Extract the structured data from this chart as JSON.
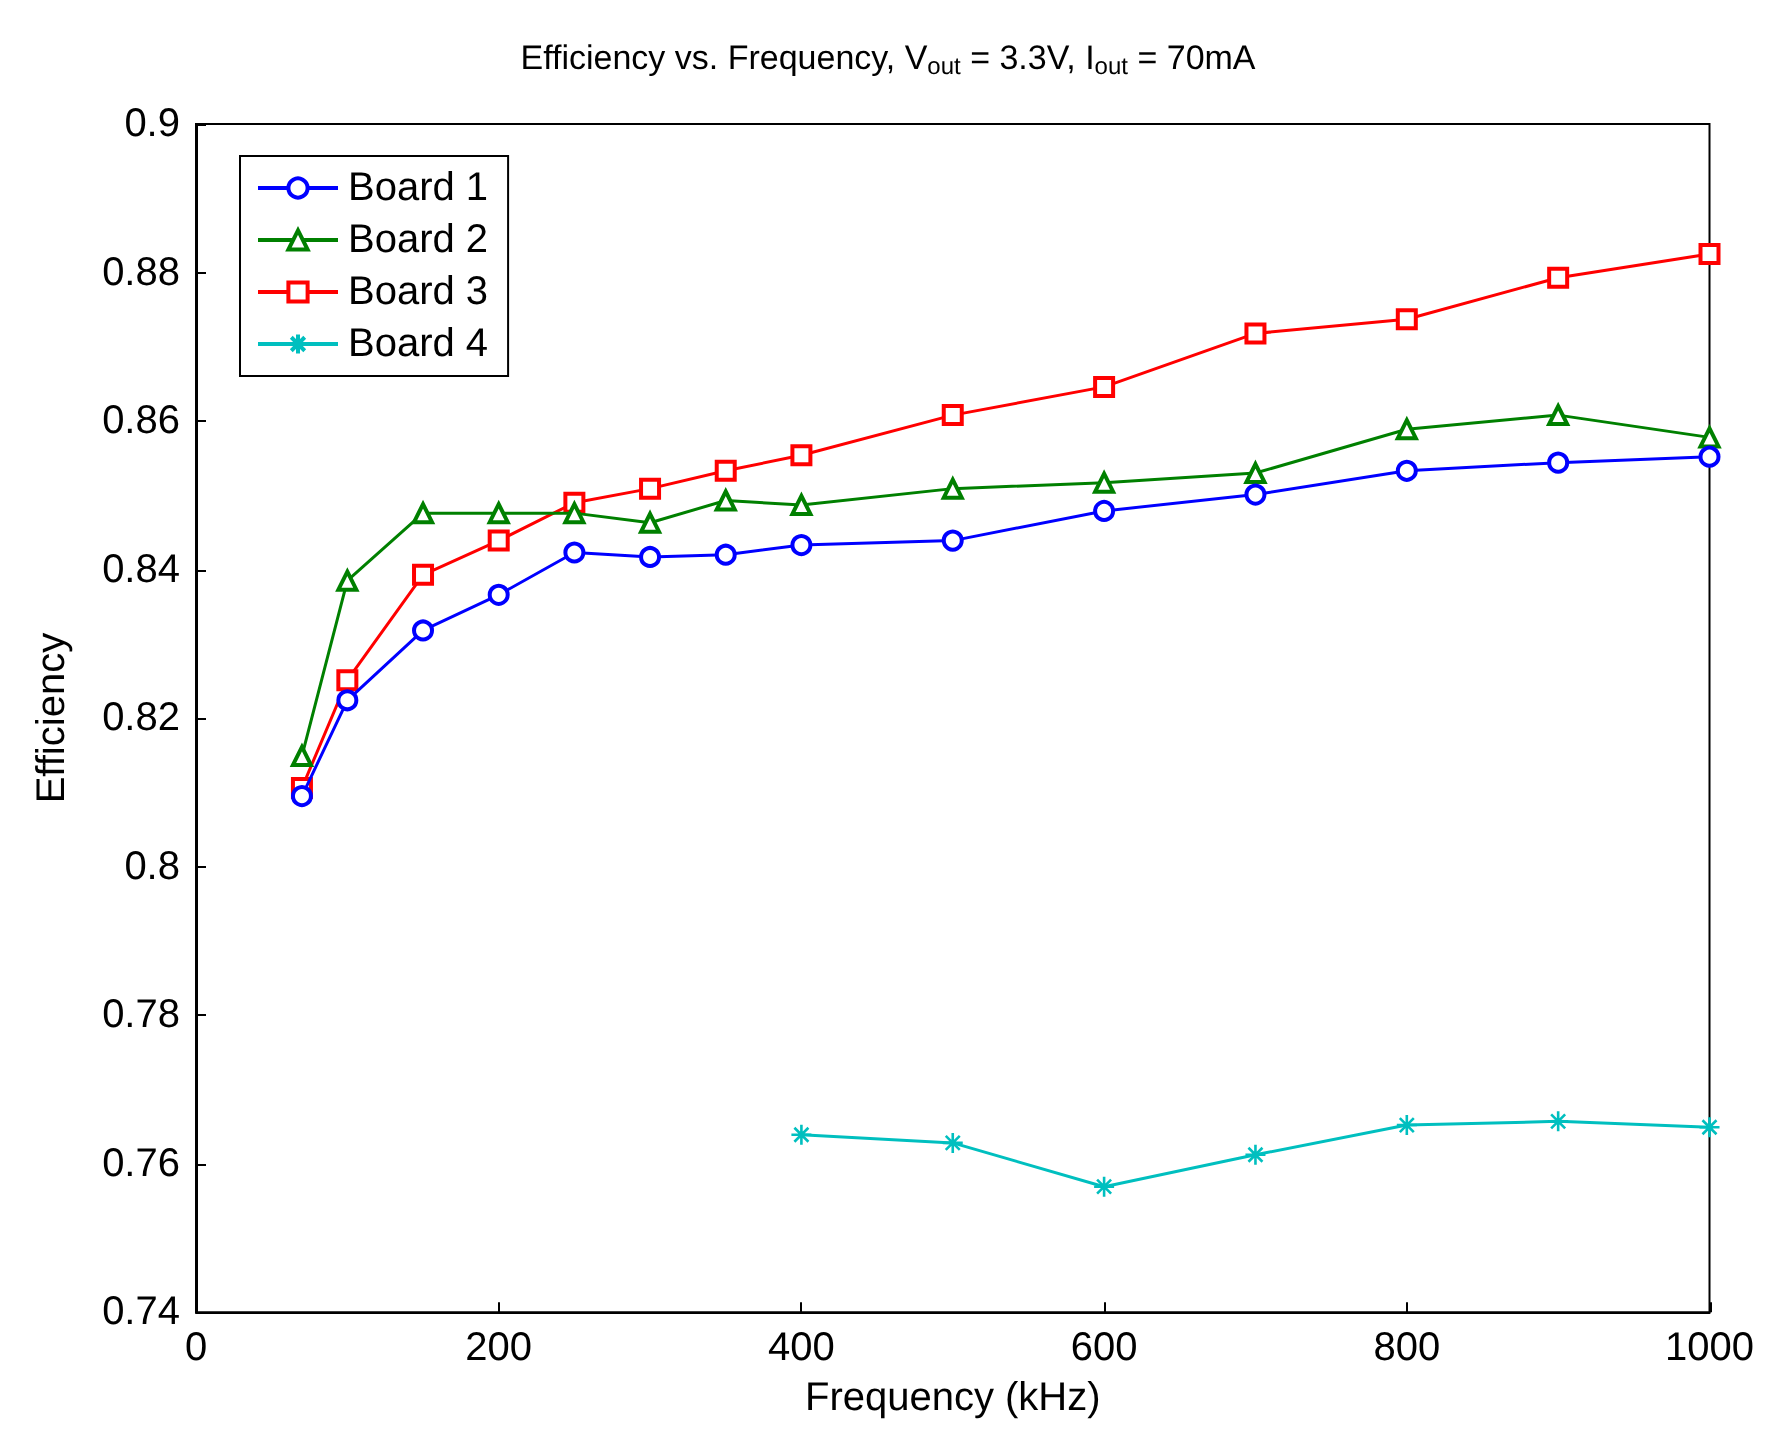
{
  "chart_data": {
    "type": "line",
    "title": "Efficiency vs. Frequency, V$_{out}$ = 3.3V, I$_{out}$ = 70mA",
    "xlabel": "Frequency (kHz)",
    "ylabel": "Efficiency",
    "xlim": [
      0,
      1000
    ],
    "xticks": [
      0,
      200,
      400,
      600,
      800,
      1000
    ],
    "ylim": [
      0.74,
      0.9
    ],
    "yticks": [
      0.74,
      0.76,
      0.78,
      0.8,
      0.82,
      0.84,
      0.86,
      0.88,
      0.9
    ],
    "grid": false,
    "legend": "top left",
    "line_style": "solid",
    "series": [
      {
        "name": "Board 1",
        "color": "#0000ff",
        "marker": "circle",
        "x": [
          70,
          100,
          150,
          200,
          250,
          300,
          350,
          400,
          500,
          600,
          700,
          800,
          900,
          1000
        ],
        "values": [
          0.8095,
          0.8224,
          0.8318,
          0.8366,
          0.8423,
          0.8417,
          0.842,
          0.8433,
          0.8439,
          0.8479,
          0.8501,
          0.8533,
          0.8544,
          0.8552
        ]
      },
      {
        "name": "Board 2",
        "color": "#008000",
        "marker": "triangle",
        "x": [
          70,
          100,
          150,
          200,
          250,
          300,
          350,
          400,
          500,
          600,
          700,
          800,
          900,
          1000
        ],
        "values": [
          0.8149,
          0.8385,
          0.8476,
          0.8476,
          0.8476,
          0.8463,
          0.8493,
          0.8487,
          0.8509,
          0.8517,
          0.853,
          0.8589,
          0.8608,
          0.8578
        ]
      },
      {
        "name": "Board 3",
        "color": "#ff0000",
        "marker": "square",
        "x": [
          70,
          100,
          150,
          200,
          250,
          300,
          350,
          400,
          500,
          600,
          700,
          800,
          900,
          1000
        ],
        "values": [
          0.8106,
          0.8251,
          0.8393,
          0.8439,
          0.849,
          0.8509,
          0.8533,
          0.8554,
          0.8608,
          0.8646,
          0.8718,
          0.8737,
          0.8793,
          0.8825
        ]
      },
      {
        "name": "Board 4",
        "color": "#00bfbf",
        "marker": "cross",
        "x": [
          400,
          500,
          600,
          700,
          800,
          900,
          1000
        ],
        "values": [
          0.7639,
          0.7628,
          0.7569,
          0.7612,
          0.7652,
          0.7657,
          0.7649
        ]
      }
    ]
  }
}
